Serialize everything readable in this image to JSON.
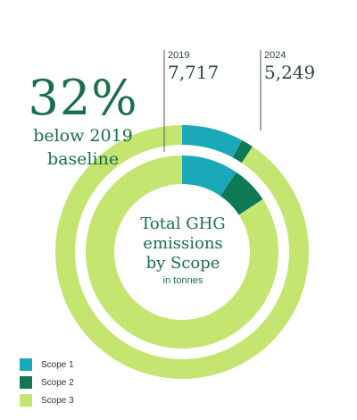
{
  "headline": {
    "percent": "32%",
    "line1": "below 2019",
    "line2": "baseline"
  },
  "center_label": {
    "line1": "Total GHG",
    "line2": "emissions",
    "line3": "by Scope",
    "unit": "in tonnes"
  },
  "colors": {
    "scope1": "#1aa9b8",
    "scope2": "#0d7a55",
    "scope3": "#c4e570",
    "text_green": "#1a6e4a",
    "divider": "#555555"
  },
  "chart_data": {
    "type": "donut",
    "unit": "tonnes",
    "categories": [
      "Scope 1",
      "Scope 2",
      "Scope 3"
    ],
    "rings": [
      {
        "year": "2019",
        "total_label": "7,717",
        "ring": "outer",
        "values": [
          605,
          120,
          6992
        ]
      },
      {
        "year": "2024",
        "total_label": "5,249",
        "ring": "inner",
        "values": [
          500,
          330,
          4419
        ]
      }
    ],
    "annotation": "32% below 2019 baseline"
  },
  "legend": [
    {
      "label": "Scope 1",
      "color": "#1aa9b8"
    },
    {
      "label": "Scope 2",
      "color": "#0d7a55"
    },
    {
      "label": "Scope 3",
      "color": "#c4e570"
    }
  ]
}
